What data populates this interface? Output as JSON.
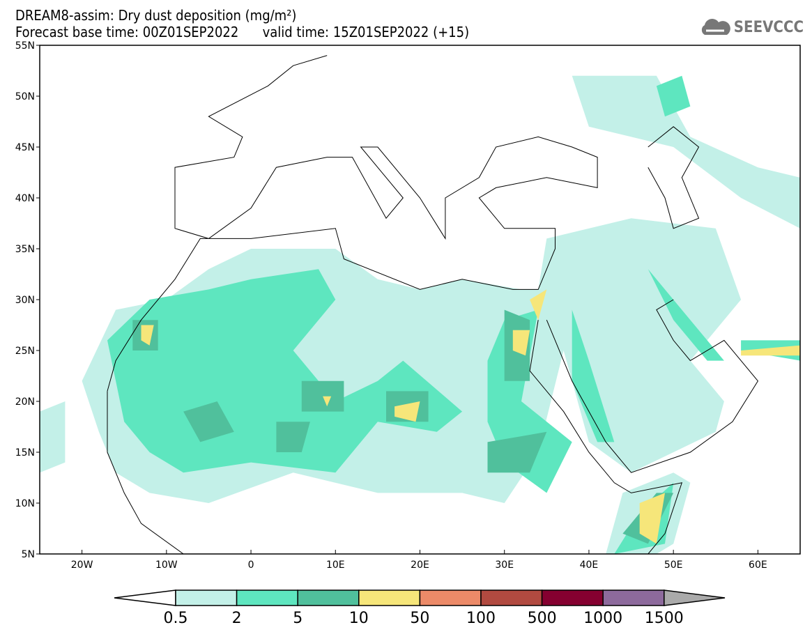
{
  "header": {
    "title": "DREAM8-assim: Dry dust deposition (mg/m²)",
    "base_time": "Forecast base time: 00Z01SEP2022",
    "valid_time": "valid time: 15Z01SEP2022 (+15)"
  },
  "logo": {
    "text": "SEEVCCC"
  },
  "map": {
    "lon_range": [
      -25,
      65
    ],
    "lat_range": [
      5,
      55
    ],
    "lat_labels": [
      "55N",
      "50N",
      "45N",
      "40N",
      "35N",
      "30N",
      "25N",
      "20N",
      "15N",
      "10N",
      "5N"
    ],
    "lon_labels": [
      "20W",
      "10W",
      "0",
      "10E",
      "20E",
      "30E",
      "40E",
      "50E",
      "60E"
    ]
  },
  "colorbar": {
    "labels": [
      "0.5",
      "2",
      "5",
      "10",
      "50",
      "100",
      "500",
      "1000",
      "1500"
    ],
    "colors": [
      "#c3f0e8",
      "#5ee6bf",
      "#50c09c",
      "#f6e67a",
      "#ec8a68",
      "#b14a40",
      "#850030",
      "#8d6a9c"
    ],
    "over_color": "#aaaaaa",
    "under_color": "#ffffff"
  }
}
